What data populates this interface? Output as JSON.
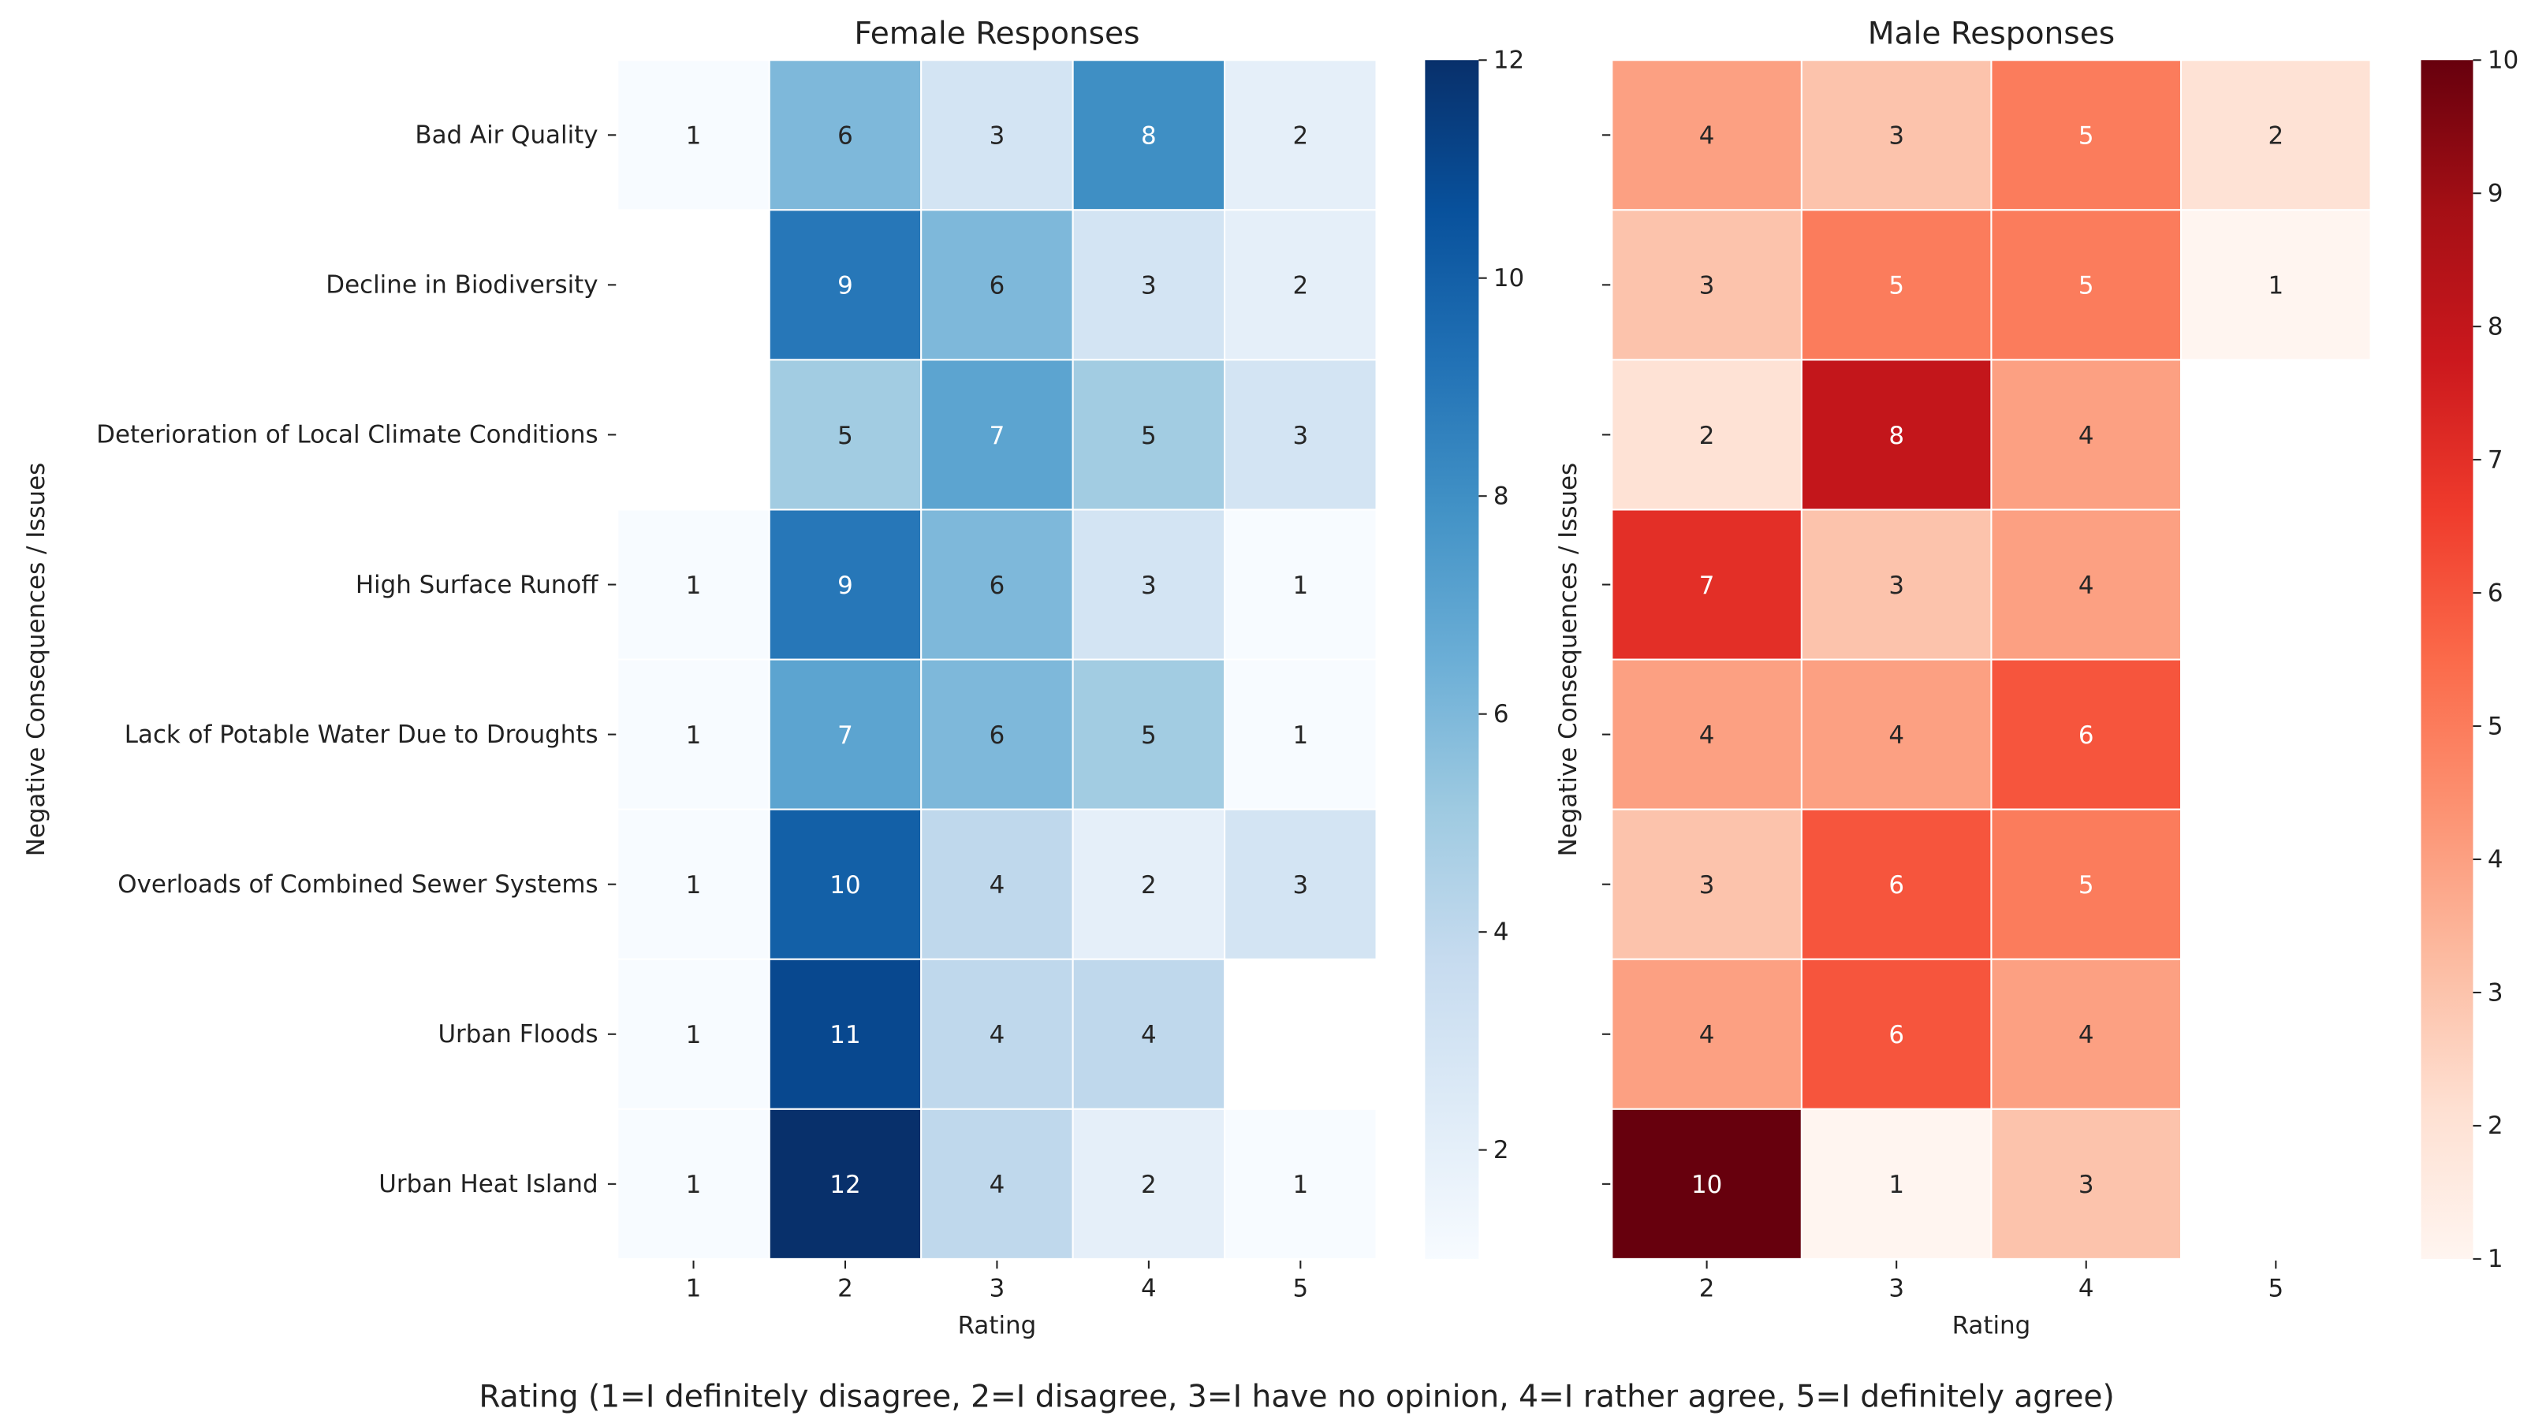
{
  "chart_data": {
    "type": "heatmap",
    "caption": "Rating (1=I definitely disagree, 2=I disagree, 3=I have no opinion, 4=I rather agree, 5=I definitely agree)",
    "rows": [
      "Bad Air Quality",
      "Decline in Biodiversity",
      "Deterioration of Local Climate Conditions",
      "High Surface Runoff",
      "Lack of Potable Water Due to Droughts",
      "Overloads of Combined Sewer Systems",
      "Urban Floods",
      "Urban Heat Island"
    ],
    "panels": [
      {
        "title": "Female Responses",
        "xlabel": "Rating",
        "ylabel": "Negative Consequences / Issues",
        "columns": [
          "1",
          "2",
          "3",
          "4",
          "5"
        ],
        "colormap": [
          "#f7fbff",
          "#deebf7",
          "#c6dbef",
          "#9ecae1",
          "#6baed6",
          "#4292c6",
          "#2171b5",
          "#08519c",
          "#08306b"
        ],
        "vmin": 1,
        "vmax": 12,
        "colorbar_ticks": [
          2,
          4,
          6,
          8,
          10,
          12
        ],
        "values": [
          [
            1,
            6,
            3,
            8,
            2
          ],
          [
            null,
            9,
            6,
            3,
            2
          ],
          [
            null,
            5,
            7,
            5,
            3
          ],
          [
            1,
            9,
            6,
            3,
            1
          ],
          [
            1,
            7,
            6,
            5,
            1
          ],
          [
            1,
            10,
            4,
            2,
            3
          ],
          [
            1,
            11,
            4,
            4,
            null
          ],
          [
            1,
            12,
            4,
            2,
            1
          ]
        ]
      },
      {
        "title": "Male Responses",
        "xlabel": "Rating",
        "ylabel": "Negative Consequences / Issues",
        "columns": [
          "2",
          "3",
          "4",
          "5"
        ],
        "colormap": [
          "#fff5f0",
          "#fee0d2",
          "#fcbba1",
          "#fc9272",
          "#fb6a4a",
          "#ef3b2c",
          "#cb181d",
          "#a50f15",
          "#67000d"
        ],
        "vmin": 1,
        "vmax": 10,
        "colorbar_ticks": [
          1,
          2,
          3,
          4,
          5,
          6,
          7,
          8,
          9,
          10
        ],
        "values": [
          [
            4,
            3,
            5,
            2
          ],
          [
            3,
            5,
            5,
            1
          ],
          [
            2,
            8,
            4,
            null
          ],
          [
            7,
            3,
            4,
            null
          ],
          [
            4,
            4,
            6,
            null
          ],
          [
            3,
            6,
            5,
            null
          ],
          [
            4,
            6,
            4,
            null
          ],
          [
            10,
            1,
            3,
            null
          ]
        ]
      }
    ]
  }
}
